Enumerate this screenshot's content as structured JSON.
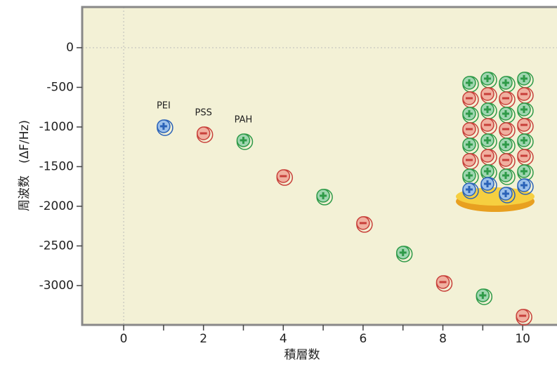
{
  "chart_data": {
    "type": "scatter",
    "xlabel": "積層数",
    "ylabel": "周波数　(ΔF/Hz)",
    "xlim": [
      -1.04,
      10.86
    ],
    "ylim": [
      -3496,
      513
    ],
    "xticks": [
      0,
      2,
      4,
      6,
      8,
      10
    ],
    "xminor_ticks": [
      1,
      3,
      5,
      7,
      9
    ],
    "yticks": [
      0,
      -500,
      -1000,
      -1500,
      -2000,
      -2500,
      -3000
    ],
    "zero_lines": true,
    "series": [
      {
        "name": "PEI",
        "color": "#2a62b8",
        "fill": "#9cc0ea",
        "marker": "plus",
        "x": [
          1
        ],
        "values": [
          -991
        ]
      },
      {
        "name": "PSS",
        "color": "#c8403a",
        "fill": "#f0b0a0",
        "marker": "minus",
        "x": [
          2,
          4,
          6,
          8,
          10
        ],
        "values": [
          -1080,
          -1620,
          -2212,
          -2956,
          -3381
        ]
      },
      {
        "name": "PAH",
        "color": "#2e9a48",
        "fill": "#9fd6b0",
        "marker": "plus",
        "x": [
          3,
          5,
          7,
          9
        ],
        "values": [
          -1168,
          -1867,
          -2584,
          -3124
        ]
      }
    ]
  }
}
